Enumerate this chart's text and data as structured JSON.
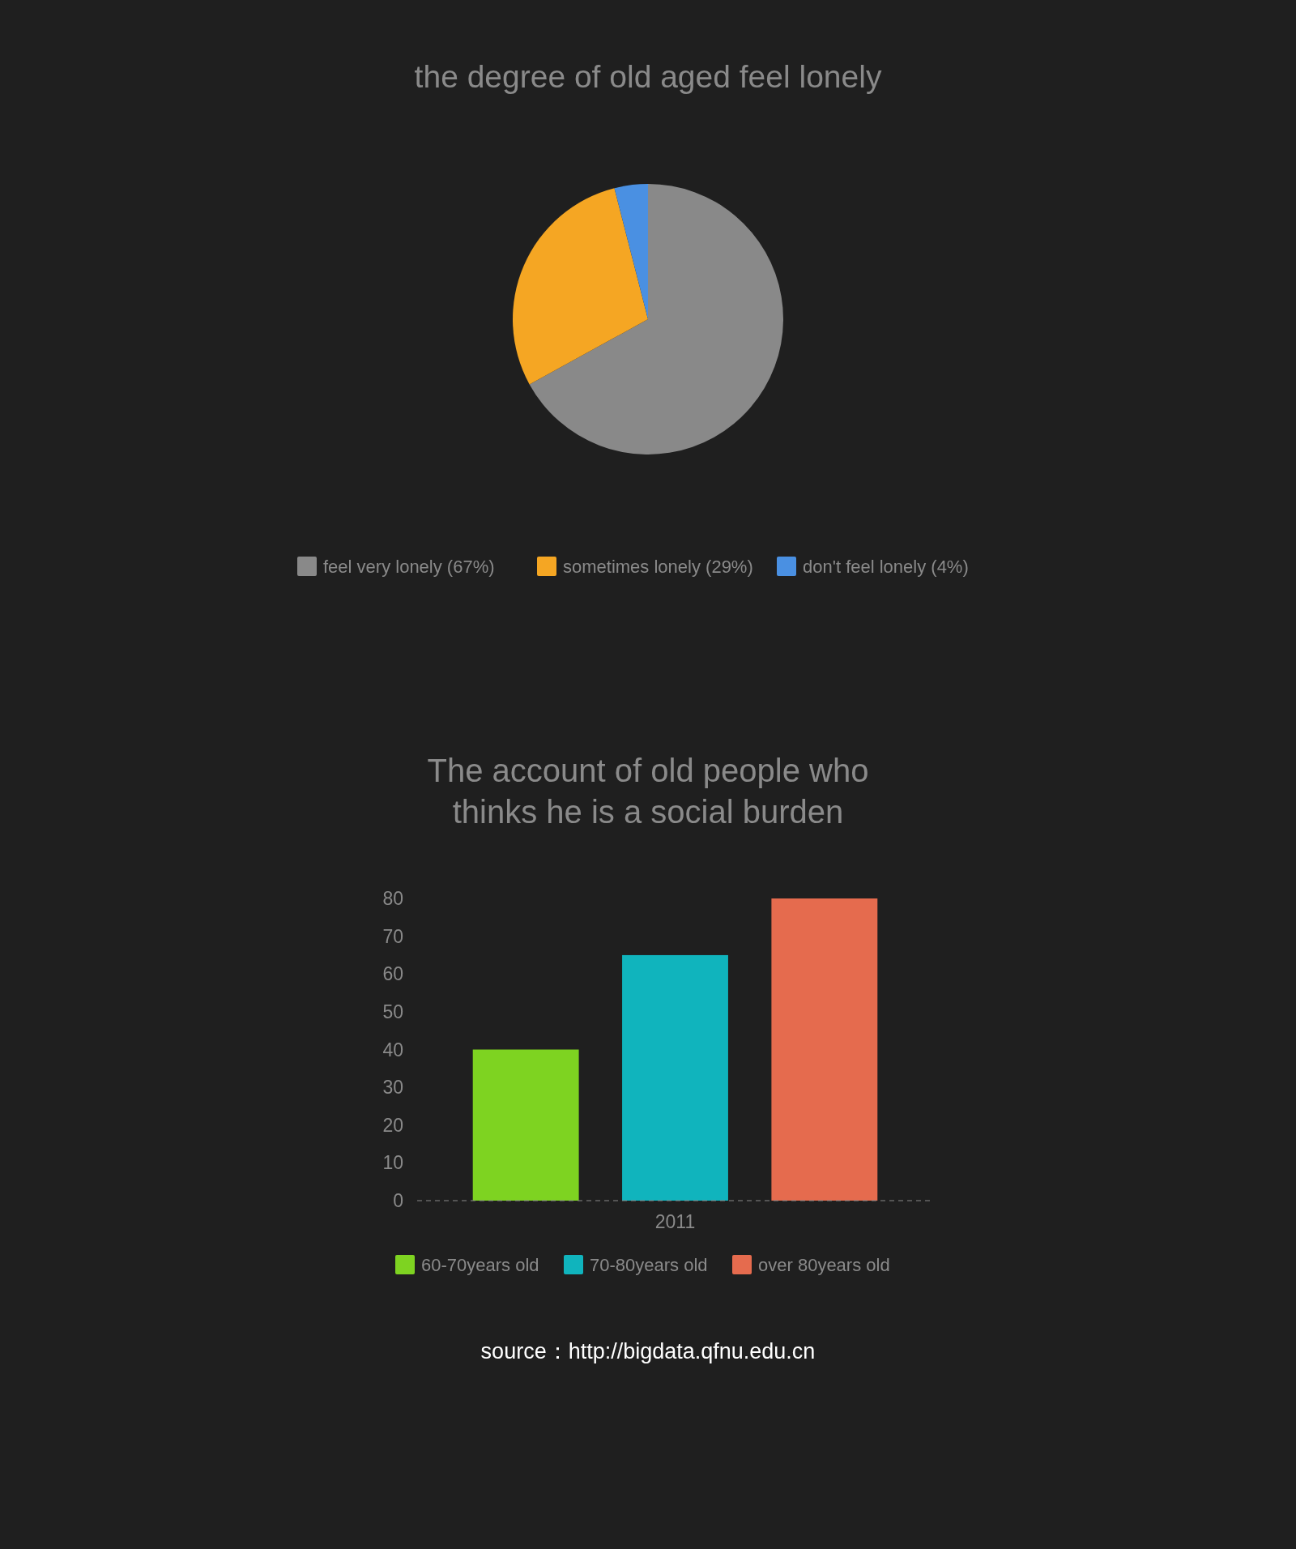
{
  "chart_data": [
    {
      "type": "pie",
      "title": "the degree of old aged feel lonely",
      "categories": [
        "feel very lonely (67%)",
        "sometimes lonely (29%)",
        "don't feel lonely (4%)"
      ],
      "values": [
        67,
        29,
        4
      ],
      "colors": [
        "#898989",
        "#f5a623",
        "#4a90e2"
      ],
      "legend": "bottom"
    },
    {
      "type": "bar",
      "title": "The account of old people who thinks he is a social burden",
      "categories": [
        "2011"
      ],
      "series": [
        {
          "name": "60-70years old",
          "color": "#7ed321",
          "values": [
            40
          ]
        },
        {
          "name": "70-80years old",
          "color": "#10b4bd",
          "values": [
            65
          ]
        },
        {
          "name": "over 80years old",
          "color": "#e56b4e",
          "values": [
            80
          ]
        }
      ],
      "ylim": [
        0,
        80
      ],
      "yticks": [
        0,
        10,
        20,
        30,
        40,
        50,
        60,
        70,
        80
      ],
      "legend": "bottom",
      "annotations": [
        "source：http://bigdata.qfnu.edu.cn"
      ]
    }
  ]
}
